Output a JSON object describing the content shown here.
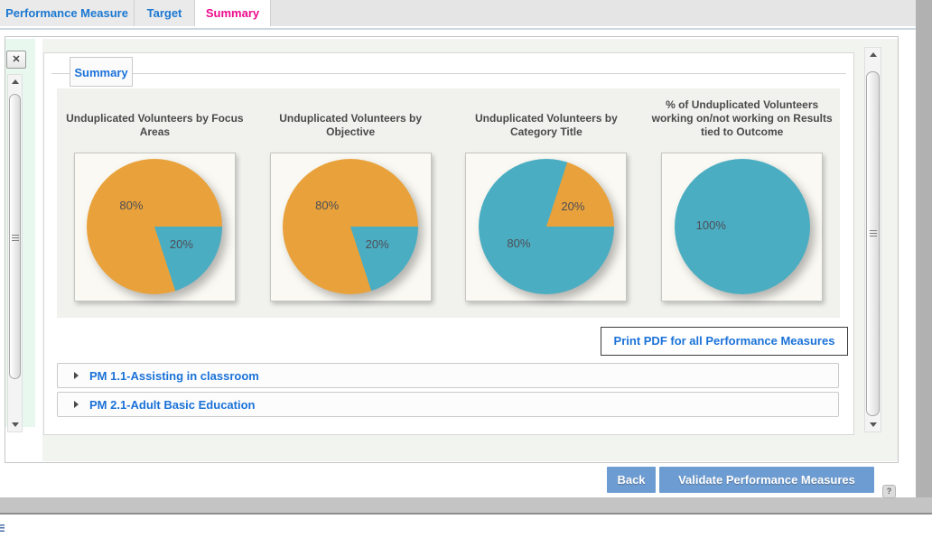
{
  "colors": {
    "tab_blue": "#1B78D2",
    "summary_pink": "#ED0B8C",
    "link_blue": "#1A72D8",
    "footer_button_blue": "#6C9CD2",
    "pie_orange": "#E9A23B",
    "pie_teal": "#4BADC2"
  },
  "top_tabs": {
    "items": [
      {
        "label": "Performance Measure"
      },
      {
        "label": "Target"
      },
      {
        "label": "Summary"
      }
    ]
  },
  "panel_tab": {
    "label": "Summary"
  },
  "chart_data": [
    {
      "type": "pie",
      "title": "Unduplicated Volunteers by Focus Areas",
      "from_deg": 90,
      "segments": [
        {
          "label": "20%",
          "pct": 20,
          "color": "#4BADC2"
        },
        {
          "label": "80%",
          "pct": 80,
          "color": "#E9A23B"
        }
      ]
    },
    {
      "type": "pie",
      "title": "Unduplicated Volunteers by Objective",
      "from_deg": 90,
      "segments": [
        {
          "label": "20%",
          "pct": 20,
          "color": "#4BADC2"
        },
        {
          "label": "80%",
          "pct": 80,
          "color": "#E9A23B"
        }
      ]
    },
    {
      "type": "pie",
      "title": "Unduplicated Volunteers by Category Title",
      "from_deg": 18,
      "segments": [
        {
          "label": "20%",
          "pct": 20,
          "color": "#E9A23B"
        },
        {
          "label": "80%",
          "pct": 80,
          "color": "#4BADC2"
        }
      ]
    },
    {
      "type": "pie",
      "title": "% of Unduplicated Volunteers working on/not working on Results tied to Outcome",
      "from_deg": 0,
      "segments": [
        {
          "label": "100%",
          "pct": 100,
          "color": "#4BADC2"
        }
      ]
    }
  ],
  "print_button": {
    "label": "Print PDF for all Performance Measures"
  },
  "measures": [
    {
      "label": "PM 1.1-Assisting in classroom"
    },
    {
      "label": "PM 2.1-Adult Basic Education"
    }
  ],
  "footer": {
    "back_label": "Back",
    "validate_label": "Validate Performance Measures",
    "help_label": "?"
  },
  "left_panel": {
    "close_glyph": "✕"
  }
}
